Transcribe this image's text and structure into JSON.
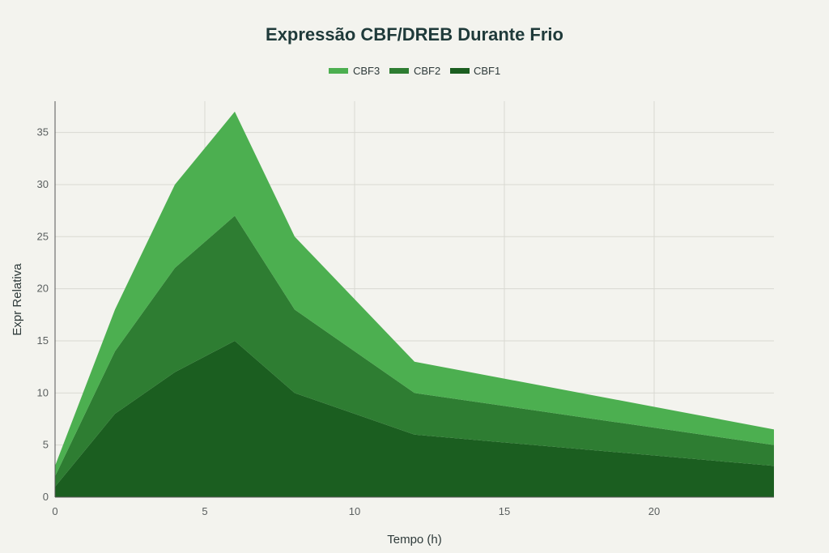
{
  "colors": {
    "background": "#f3f3ee",
    "CBF3": "#4caf50",
    "CBF2": "#2e7d32",
    "CBF1": "#1b5e20",
    "grid": "#d9d9d2"
  },
  "chart_data": {
    "type": "area",
    "stacked": true,
    "title": "Expressão CBF/DREB Durante Frio",
    "xlabel": "Tempo (h)",
    "ylabel": "Expr Relativa",
    "x": [
      0,
      2,
      4,
      6,
      8,
      12,
      24
    ],
    "xlim": [
      0,
      24
    ],
    "ylim": [
      0,
      38
    ],
    "xticks": [
      0,
      5,
      10,
      15,
      20
    ],
    "yticks": [
      0,
      5,
      10,
      15,
      20,
      25,
      30,
      35
    ],
    "grid": true,
    "legend_position": "top-center",
    "legend_order": [
      "CBF3",
      "CBF2",
      "CBF1"
    ],
    "series": [
      {
        "name": "CBF1",
        "values": [
          1,
          8,
          12,
          15,
          10,
          6,
          3
        ]
      },
      {
        "name": "CBF2",
        "values": [
          1,
          6,
          10,
          12,
          8,
          4,
          2
        ]
      },
      {
        "name": "CBF3",
        "values": [
          1,
          4,
          8,
          10,
          7,
          3,
          1.5
        ]
      }
    ]
  }
}
